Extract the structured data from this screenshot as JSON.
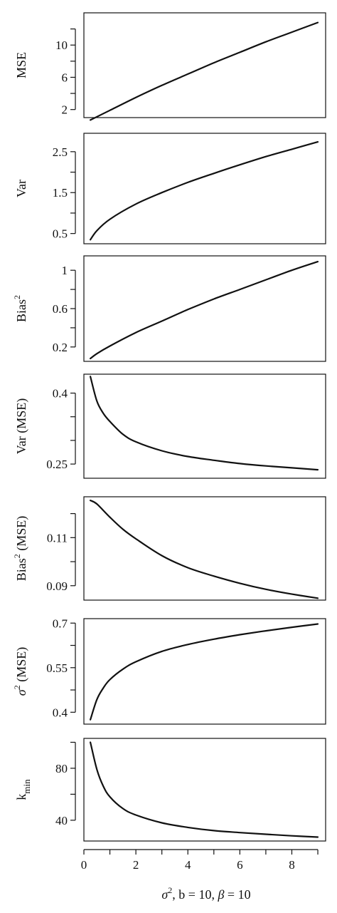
{
  "xlabel": {
    "prefix": "σ",
    "sup": "2",
    "rest": ", b = 10, ",
    "beta": "β",
    "beta_rest": " = 10"
  },
  "chart_data": [
    {
      "type": "line",
      "ylabel": {
        "main": "MSE",
        "sup": "",
        "after": ""
      },
      "yticks": [
        2,
        6,
        10
      ],
      "yminor": [
        4,
        8,
        12
      ],
      "ylim": [
        1,
        14
      ],
      "xlim": [
        0,
        9.3
      ],
      "x": [
        0.25,
        1,
        2,
        3,
        4,
        5,
        6,
        7,
        8,
        9
      ],
      "values": [
        0.7,
        1.9,
        3.5,
        5.0,
        6.4,
        7.8,
        9.1,
        10.4,
        11.6,
        12.8
      ]
    },
    {
      "type": "line",
      "ylabel": {
        "main": "Var",
        "sup": "",
        "after": ""
      },
      "yticks": [
        0.5,
        1.5,
        2.5
      ],
      "yminor": [
        1.0,
        2.0
      ],
      "ylim": [
        0.25,
        2.95
      ],
      "xlim": [
        0,
        9.3
      ],
      "x": [
        0.25,
        0.5,
        1,
        2,
        3,
        4,
        5,
        6,
        7,
        8,
        9
      ],
      "values": [
        0.35,
        0.57,
        0.85,
        1.22,
        1.5,
        1.75,
        1.97,
        2.18,
        2.38,
        2.56,
        2.74
      ]
    },
    {
      "type": "line",
      "ylabel": {
        "main": "Bias",
        "sup": "2",
        "after": ""
      },
      "yticks": [
        0.2,
        0.6,
        1.0
      ],
      "yminor": [
        0.4,
        0.8
      ],
      "ylim": [
        0.05,
        1.15
      ],
      "xlim": [
        0,
        9.3
      ],
      "x": [
        0.25,
        0.5,
        1,
        2,
        3,
        4,
        5,
        6,
        7,
        8,
        9
      ],
      "values": [
        0.08,
        0.13,
        0.21,
        0.35,
        0.47,
        0.59,
        0.7,
        0.8,
        0.9,
        1.0,
        1.09
      ]
    },
    {
      "type": "line",
      "ylabel": {
        "main": "Var (MSE)",
        "sup": "",
        "after": ""
      },
      "yticks": [
        0.25,
        0.4
      ],
      "yminor": [
        0.3,
        0.35
      ],
      "ylim": [
        0.22,
        0.44
      ],
      "xlim": [
        0,
        9.3
      ],
      "x": [
        0.25,
        0.5,
        0.75,
        1,
        1.5,
        2,
        3,
        4,
        5,
        6,
        7,
        8,
        9
      ],
      "values": [
        0.435,
        0.383,
        0.357,
        0.34,
        0.313,
        0.297,
        0.278,
        0.266,
        0.258,
        0.251,
        0.246,
        0.242,
        0.238
      ]
    },
    {
      "type": "line",
      "ylabel": {
        "main": "Bias",
        "sup": "2",
        "after": " (MSE)"
      },
      "yticks": [
        0.09,
        0.11
      ],
      "yminor": [
        0.1,
        0.12
      ],
      "ylim": [
        0.084,
        0.127
      ],
      "xlim": [
        0,
        9.3
      ],
      "x": [
        0.25,
        0.5,
        1,
        1.5,
        2,
        3,
        4,
        5,
        6,
        7,
        8,
        9
      ],
      "values": [
        0.1255,
        0.124,
        0.1185,
        0.1135,
        0.1095,
        0.1025,
        0.0975,
        0.094,
        0.091,
        0.0885,
        0.0865,
        0.0848
      ]
    },
    {
      "type": "line",
      "ylabel": {
        "main": "σ",
        "sup": "2",
        "after": " (MSE)"
      },
      "yticks": [
        0.4,
        0.55,
        0.7
      ],
      "yminor": [
        0.475,
        0.625
      ],
      "ylim": [
        0.36,
        0.715
      ],
      "xlim": [
        0,
        9.3
      ],
      "x": [
        0.25,
        0.5,
        0.75,
        1,
        1.5,
        2,
        3,
        4,
        5,
        6,
        7,
        8,
        9
      ],
      "values": [
        0.375,
        0.443,
        0.482,
        0.51,
        0.545,
        0.57,
        0.605,
        0.628,
        0.646,
        0.661,
        0.674,
        0.686,
        0.697
      ]
    },
    {
      "type": "line",
      "ylabel": {
        "main": "k",
        "sup": "",
        "after": "",
        "sub": "min"
      },
      "yticks": [
        40,
        80
      ],
      "yminor": [
        60,
        100
      ],
      "ylim": [
        24,
        103
      ],
      "xlim": [
        0,
        9.3
      ],
      "x": [
        0.25,
        0.5,
        0.75,
        1,
        1.5,
        2,
        3,
        4,
        5,
        6,
        7,
        8,
        9
      ],
      "values": [
        100,
        79,
        66,
        58,
        49,
        44,
        38,
        34.5,
        32,
        30.5,
        29.2,
        28,
        27
      ],
      "xticks": [
        0,
        2,
        4,
        6,
        8
      ],
      "xminor": [
        1,
        3,
        5,
        7,
        9
      ]
    }
  ]
}
